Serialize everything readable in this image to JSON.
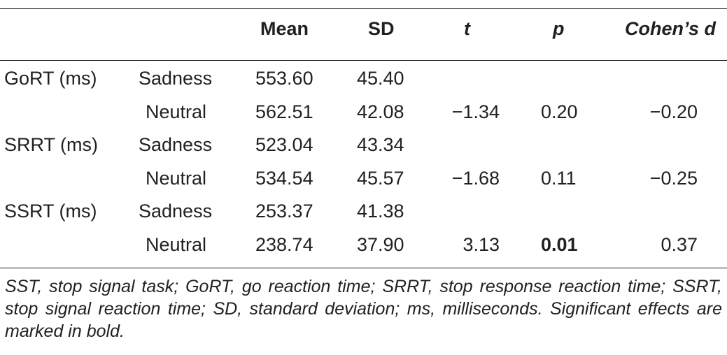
{
  "table": {
    "headers": {
      "mean": "Mean",
      "sd": "SD",
      "t": "t",
      "p": "p",
      "cohens_d": "Cohen’s d"
    },
    "rows": [
      {
        "measure": "GoRT (ms)",
        "condition": "Sadness",
        "mean": "553.60",
        "sd": "45.40",
        "t": "",
        "p": "",
        "d": ""
      },
      {
        "measure": "",
        "condition": "Neutral",
        "mean": "562.51",
        "sd": "42.08",
        "t": "−1.34",
        "p": "0.20",
        "d": "−0.20"
      },
      {
        "measure": "SRRT (ms)",
        "condition": "Sadness",
        "mean": "523.04",
        "sd": "43.34",
        "t": "",
        "p": "",
        "d": ""
      },
      {
        "measure": "",
        "condition": "Neutral",
        "mean": "534.54",
        "sd": "45.57",
        "t": "−1.68",
        "p": "0.11",
        "d": "−0.25"
      },
      {
        "measure": "SSRT (ms)",
        "condition": "Sadness",
        "mean": "253.37",
        "sd": "41.38",
        "t": "",
        "p": "",
        "d": ""
      },
      {
        "measure": "",
        "condition": "Neutral",
        "mean": "238.74",
        "sd": "37.90",
        "t": "3.13",
        "p": "0.01",
        "d": "0.37"
      }
    ]
  },
  "footnote": "SST, stop signal task; GoRT, go reaction time; SRRT, stop response reaction time; SSRT, stop signal reaction time; SD, standard deviation; ms, milliseconds. Significant effects are marked in bold."
}
